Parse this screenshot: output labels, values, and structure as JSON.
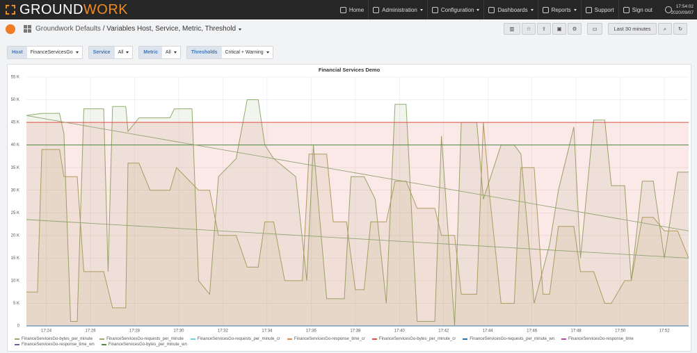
{
  "nav": {
    "brand_a": "GROUND",
    "brand_b": "WORK",
    "items": [
      "Home",
      "Administration",
      "Configuration",
      "Dashboards",
      "Reports",
      "Support",
      "Sign out"
    ],
    "time": "17:54:02",
    "date": "2020/09/07"
  },
  "dashboard": {
    "folder": "Groundwork Defaults",
    "separator": "/",
    "title": "Variables Host, Service, Metric, Threshold",
    "time_range": "Last 30 minutes"
  },
  "variables": [
    {
      "label": "Host",
      "value": "FinanceServicesGo"
    },
    {
      "label": "Service",
      "value": "All"
    },
    {
      "label": "Metric",
      "value": "All"
    },
    {
      "label": "Thresholds",
      "value": "Critical + Warning"
    }
  ],
  "chart_data": {
    "type": "line",
    "title": "Financial Services Demo",
    "xlim": [
      1043.1,
      1073.1
    ],
    "xticks": [
      {
        "value": 1044,
        "label": "17:24"
      },
      {
        "value": 1046,
        "label": "17:26"
      },
      {
        "value": 1048,
        "label": "17:28"
      },
      {
        "value": 1050,
        "label": "17:30"
      },
      {
        "value": 1052,
        "label": "17:32"
      },
      {
        "value": 1054,
        "label": "17:34"
      },
      {
        "value": 1056,
        "label": "17:36"
      },
      {
        "value": 1058,
        "label": "17:38"
      },
      {
        "value": 1060,
        "label": "17:40"
      },
      {
        "value": 1062,
        "label": "17:42"
      },
      {
        "value": 1064,
        "label": "17:44"
      },
      {
        "value": 1066,
        "label": "17:46"
      },
      {
        "value": 1068,
        "label": "17:48"
      },
      {
        "value": 1070,
        "label": "17:50"
      },
      {
        "value": 1072,
        "label": "17:52"
      }
    ],
    "ylim": [
      0,
      55000
    ],
    "yticks": [
      0,
      {
        "value": 5000,
        "label": "5 K"
      },
      {
        "value": 10000,
        "label": "10 K"
      },
      {
        "value": 15000,
        "label": "15 K"
      },
      {
        "value": 20000,
        "label": "20 K"
      },
      {
        "value": 25000,
        "label": "25 K"
      },
      {
        "value": 30000,
        "label": "30 K"
      },
      {
        "value": 35000,
        "label": "35 K"
      },
      {
        "value": 40000,
        "label": "40 K"
      },
      {
        "value": 45000,
        "label": "45 K"
      },
      {
        "value": 50000,
        "label": "50 K"
      },
      {
        "value": 55000,
        "label": "55 K"
      }
    ],
    "grid": true,
    "series": [
      {
        "name": "FinanceServicesGo-bytes_per_minute",
        "color": "#8fae6e",
        "fill": true,
        "x": [
          1043.1,
          1043.8,
          1044.6,
          1044.8,
          1045.1,
          1045.4,
          1045.7,
          1046.6,
          1046.8,
          1047.0,
          1047.6,
          1047.7,
          1048.2,
          1048.5,
          1048.7,
          1049.6,
          1049.8,
          1050.6,
          1050.9,
          1051.4,
          1051.8,
          1052.6,
          1053.1,
          1053.6,
          1053.9,
          1054.3,
          1054.8,
          1055.3,
          1055.8,
          1056.1,
          1056.7,
          1057.5,
          1057.8,
          1058.4,
          1058.9,
          1059.4,
          1059.8,
          1060.3,
          1060.8,
          1061.6,
          1061.9,
          1062.5,
          1062.8,
          1063.5,
          1063.8,
          1064.6,
          1065.2,
          1065.5,
          1066.1,
          1066.8,
          1067.2,
          1067.9,
          1068.2,
          1068.8,
          1069.3,
          1069.6,
          1070.2,
          1070.5,
          1071.0,
          1071.5,
          1072.0,
          1072.6,
          1073.1
        ],
        "values": [
          46500,
          47000,
          47000,
          42500,
          1000,
          1000,
          48000,
          48000,
          12000,
          48500,
          48500,
          43000,
          46000,
          46000,
          46000,
          46000,
          48000,
          48000,
          10000,
          7000,
          33000,
          37000,
          50000,
          50000,
          40000,
          37000,
          35000,
          33000,
          10000,
          40000,
          6000,
          6000,
          33000,
          33000,
          28000,
          5000,
          49000,
          49000,
          1000,
          1000,
          42000,
          0,
          45000,
          45000,
          28000,
          40000,
          40000,
          38000,
          5000,
          18000,
          30000,
          44000,
          15000,
          45500,
          45500,
          31000,
          31000,
          10000,
          32000,
          32000,
          15000,
          34000,
          34000
        ]
      },
      {
        "name": "FinanceServicesGo-requests_per_minute",
        "color": "#a8a565",
        "fill": true,
        "x": [
          1043.1,
          1043.6,
          1043.8,
          1044.6,
          1044.8,
          1045.4,
          1045.7,
          1046.6,
          1047.0,
          1047.6,
          1047.7,
          1048.2,
          1048.7,
          1049.6,
          1049.9,
          1050.9,
          1051.4,
          1051.8,
          1052.6,
          1053.1,
          1053.6,
          1053.9,
          1054.3,
          1054.8,
          1055.6,
          1055.9,
          1056.7,
          1057.0,
          1057.6,
          1058.0,
          1058.4,
          1058.7,
          1059.4,
          1059.8,
          1060.3,
          1060.8,
          1061.6,
          1061.9,
          1062.5,
          1062.8,
          1063.5,
          1063.8,
          1064.1,
          1064.6,
          1065.2,
          1065.5,
          1066.1,
          1066.5,
          1066.8,
          1067.2,
          1067.9,
          1068.2,
          1068.8,
          1069.3,
          1069.6,
          1070.2,
          1070.5,
          1071.0,
          1071.5,
          1072.0,
          1072.6,
          1073.1
        ],
        "values": [
          7500,
          7500,
          39000,
          39000,
          33000,
          33000,
          12000,
          12000,
          4000,
          4000,
          36000,
          36000,
          30000,
          30000,
          35000,
          30000,
          30000,
          20000,
          20000,
          13000,
          13000,
          23000,
          23000,
          10000,
          10000,
          38000,
          38000,
          23000,
          23000,
          8000,
          8000,
          23000,
          23000,
          32000,
          32000,
          26000,
          26000,
          20000,
          20000,
          7000,
          7000,
          45000,
          28000,
          5000,
          5000,
          35000,
          35000,
          7000,
          7000,
          22000,
          22000,
          12000,
          12000,
          5000,
          5000,
          10000,
          10000,
          24000,
          24000,
          21000,
          21000,
          15000
        ]
      },
      {
        "name": "FinanceServicesGo-requests_per_minute_cr",
        "color": "#6ed0e0"
      },
      {
        "name": "FinanceServicesGo-response_time_cr",
        "color": "#ef843c"
      },
      {
        "name": "FinanceServicesGo-bytes_per_minute_cr",
        "color": "#e24d42",
        "fill": true,
        "x": [
          1043.1,
          1073.1
        ],
        "values": [
          45000,
          45000
        ]
      },
      {
        "name": "FinanceServicesGo-requests_per_minute_wn",
        "color": "#1f78c1"
      },
      {
        "name": "FinanceServicesGo-response_time",
        "color": "#ba43a9"
      },
      {
        "name": "FinanceServicesGo-response_time_wn",
        "color": "#705da0"
      },
      {
        "name": "FinanceServicesGo-bytes_per_minute_wn",
        "color": "#508642",
        "x": [
          1043.1,
          1073.1
        ],
        "values": [
          40000,
          40000
        ]
      }
    ],
    "trend_lines": [
      {
        "color": "#94a474",
        "x": [
          1043.1,
          1073.1
        ],
        "values": [
          46500,
          21000
        ]
      },
      {
        "color": "#94a474",
        "x": [
          1043.1,
          1073.1
        ],
        "values": [
          23500,
          15000
        ]
      }
    ]
  }
}
